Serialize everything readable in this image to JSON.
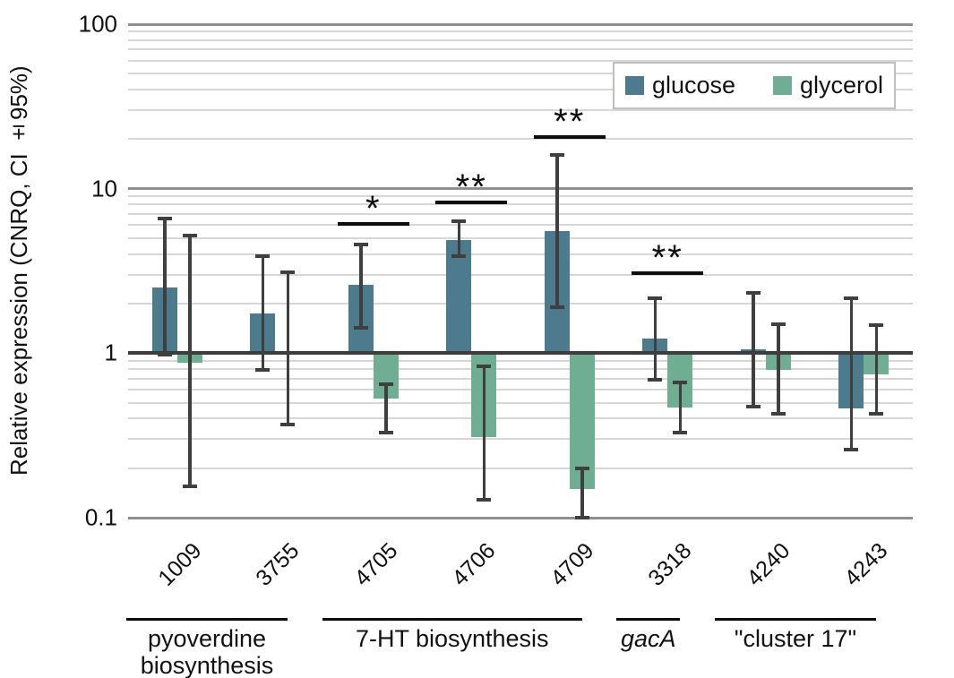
{
  "figure": {
    "ylabel": "Relative expression (CNRQ, CI ±95%)",
    "legend": [
      {
        "label": "glucose",
        "color": "#4b7b8d"
      },
      {
        "label": "glycerol",
        "color": "#6fae93"
      }
    ]
  },
  "chart_data": {
    "type": "bar",
    "scale": "log10",
    "title": "",
    "xlabel": "",
    "ylabel": "Relative expression (CNRQ, CI ±95%)",
    "ylim": [
      0.1,
      100
    ],
    "yticks": [
      100,
      10,
      1,
      0.1
    ],
    "ytick_labels": [
      "100",
      "10",
      "1",
      "0.1"
    ],
    "grid": "log minor gridlines on, major decade lines darker, baseline at 1",
    "legend_position": "top-right inside plot",
    "series_names": [
      "glucose",
      "glycerol"
    ],
    "colors": {
      "glucose": "#4b7b8d",
      "glycerol": "#6fae93",
      "error_bar": "#3f3f3f"
    },
    "error_bars": "95% confidence intervals",
    "genes": [
      {
        "name": "1009",
        "glucose": {
          "value": 2.5,
          "ci_low": 0.98,
          "ci_high": 6.6
        },
        "glycerol": {
          "value": 0.88,
          "ci_low": 0.155,
          "ci_high": 5.2
        },
        "sig": null
      },
      {
        "name": "3755",
        "glucose": {
          "value": 1.75,
          "ci_low": 0.79,
          "ci_high": 3.9
        },
        "glycerol": {
          "value": 1.0,
          "ci_low": 0.37,
          "ci_high": 3.1
        },
        "sig": null
      },
      {
        "name": "4705",
        "glucose": {
          "value": 2.6,
          "ci_low": 1.42,
          "ci_high": 4.6
        },
        "glycerol": {
          "value": 0.53,
          "ci_low": 0.33,
          "ci_high": 0.65
        },
        "sig": {
          "marker": "*",
          "line_value": 6.1
        }
      },
      {
        "name": "4706",
        "glucose": {
          "value": 4.9,
          "ci_low": 3.9,
          "ci_high": 6.35
        },
        "glycerol": {
          "value": 0.31,
          "ci_low": 0.128,
          "ci_high": 0.83
        },
        "sig": {
          "marker": "**",
          "line_value": 8.25
        }
      },
      {
        "name": "4709",
        "glucose": {
          "value": 5.5,
          "ci_low": 1.9,
          "ci_high": 16.0
        },
        "glycerol": {
          "value": 0.15,
          "ci_low": 0.1,
          "ci_high": 0.2
        },
        "sig": {
          "marker": "**",
          "line_value": 20.6
        }
      },
      {
        "name": "3318",
        "glucose": {
          "value": 1.23,
          "ci_low": 0.69,
          "ci_high": 2.15
        },
        "glycerol": {
          "value": 0.465,
          "ci_low": 0.33,
          "ci_high": 0.66
        },
        "sig": {
          "marker": "**",
          "line_value": 3.05
        }
      },
      {
        "name": "4240",
        "glucose": {
          "value": 1.05,
          "ci_low": 0.475,
          "ci_high": 2.33
        },
        "glycerol": {
          "value": 0.79,
          "ci_low": 0.43,
          "ci_high": 1.5
        },
        "sig": null
      },
      {
        "name": "4243",
        "glucose": {
          "value": 0.46,
          "ci_low": 0.26,
          "ci_high": 2.15
        },
        "glycerol": {
          "value": 0.74,
          "ci_low": 0.43,
          "ci_high": 1.48
        },
        "sig": null
      }
    ],
    "groups": [
      {
        "label_lines": [
          "pyoverdine",
          "biosynthesis"
        ],
        "italic": false,
        "gene_start": 0,
        "gene_end": 1
      },
      {
        "label_lines": [
          "7-HT biosynthesis"
        ],
        "italic": false,
        "gene_start": 2,
        "gene_end": 4
      },
      {
        "label_lines": [
          "gacA"
        ],
        "italic": true,
        "gene_start": 5,
        "gene_end": 5
      },
      {
        "label_lines": [
          "\"cluster 17\""
        ],
        "italic": false,
        "gene_start": 6,
        "gene_end": 7
      }
    ]
  }
}
